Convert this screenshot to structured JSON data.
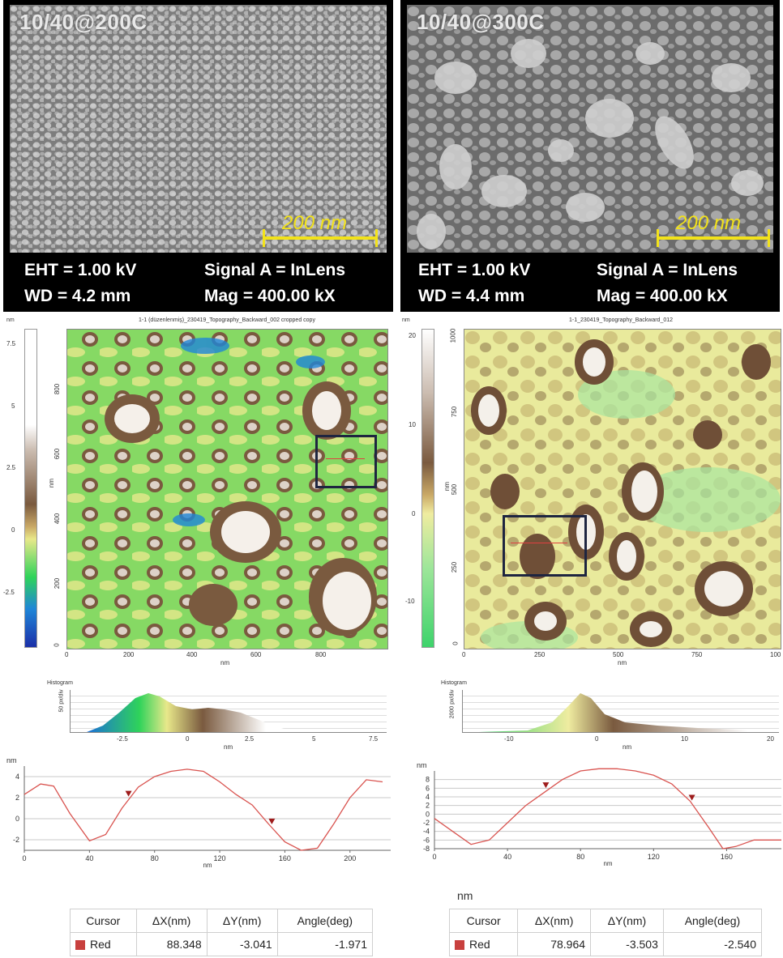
{
  "sem_left": {
    "title": "10/40@200C",
    "scale": "200 nm",
    "eht": "EHT = 1.00 kV",
    "signal": "Signal A = InLens",
    "wd": "WD = 4.2 mm",
    "mag": "Mag = 400.00 kX"
  },
  "sem_right": {
    "title": "10/40@300C",
    "scale": "200 nm",
    "eht": "EHT = 1.00 kV",
    "signal": "Signal A = InLens",
    "wd": "WD = 4.4 mm",
    "mag": "Mag = 400.00 kX"
  },
  "afm_left": {
    "title": "1-1 (düzenlenmiş)_230419_Topography_Backward_002 cropped copy",
    "unit": "nm",
    "colorbar_ticks": [
      "7.5",
      "5",
      "2.5",
      "0",
      "-2.5"
    ],
    "y_ticks": [
      "800",
      "600",
      "400",
      "200",
      "0"
    ],
    "x_ticks": [
      "0",
      "200",
      "400",
      "600",
      "800"
    ],
    "axis_label": "nm",
    "histogram_label": "Histogram",
    "hist_ylabel": "50 px/div",
    "hist_ticks": [
      "-2.5",
      "0",
      "2.5",
      "5",
      "7.5"
    ],
    "hist_xlabel": "nm",
    "colors": {
      "low": "#1b2fa8",
      "mid": "#2fd35a",
      "zero": "#e8e88a",
      "high1": "#7a5a3f",
      "top": "#ffffff"
    }
  },
  "afm_right": {
    "title": "1-1_230419_Topography_Backward_012",
    "unit": "nm",
    "colorbar_ticks": [
      "20",
      "10",
      "0",
      "-10"
    ],
    "y_ticks": [
      "1000",
      "750",
      "500",
      "250",
      "0"
    ],
    "x_ticks": [
      "0",
      "250",
      "500",
      "750",
      "100"
    ],
    "axis_label": "nm",
    "histogram_label": "Histogram",
    "hist_ylabel": "2000 px/div",
    "hist_ticks": [
      "-10",
      "0",
      "10",
      "20"
    ],
    "hist_xlabel": "nm",
    "colors": {
      "low": "#3ed36b",
      "zero": "#efeca0",
      "high1": "#7a5a3f",
      "top": "#ffffff"
    }
  },
  "profile_left": {
    "unit": "nm",
    "y_ticks": [
      "4",
      "2",
      "0",
      "-2"
    ],
    "x_ticks": [
      "0",
      "40",
      "80",
      "120",
      "160",
      "200"
    ],
    "xlabel": "nm"
  },
  "profile_right": {
    "unit": "nm",
    "y_ticks": [
      "8",
      "6",
      "4",
      "2",
      "0",
      "-2",
      "-4",
      "-6",
      "-8"
    ],
    "x_ticks": [
      "0",
      "40",
      "80",
      "120",
      "160"
    ],
    "xlabel": "nm"
  },
  "chart_data": [
    {
      "type": "line",
      "x": [
        0,
        10,
        18,
        28,
        40,
        50,
        60,
        70,
        80,
        90,
        100,
        110,
        120,
        130,
        140,
        150,
        160,
        170,
        180,
        190,
        200,
        210,
        220
      ],
      "series": [
        {
          "values": [
            2.3,
            3.3,
            3.1,
            0.5,
            -2.1,
            -1.5,
            1.0,
            3.0,
            4.0,
            4.5,
            4.7,
            4.5,
            3.5,
            2.3,
            1.3,
            -0.5,
            -2.2,
            -3.0,
            -2.8,
            -0.5,
            2.0,
            3.7,
            3.5
          ]
        }
      ],
      "xlim": [
        0,
        225
      ],
      "ylim": [
        -3,
        5
      ],
      "cursor_x": [
        64,
        152
      ],
      "line_color": "#d9534f"
    },
    {
      "type": "line",
      "x": [
        0,
        10,
        20,
        30,
        40,
        50,
        60,
        70,
        80,
        90,
        100,
        110,
        120,
        130,
        140,
        150,
        158,
        165,
        175,
        190
      ],
      "series": [
        {
          "values": [
            -1,
            -4,
            -7,
            -6,
            -2,
            2,
            5,
            8,
            10,
            10.5,
            10.5,
            10,
            9,
            7,
            3,
            -3,
            -8,
            -7.5,
            -6,
            -6
          ]
        }
      ],
      "xlim": [
        0,
        190
      ],
      "ylim": [
        -8,
        10
      ],
      "cursor_x": [
        61,
        141
      ],
      "line_color": "#d9534f"
    }
  ],
  "table_left": {
    "headers": [
      "Cursor",
      "ΔX(nm)",
      "ΔY(nm)",
      "Angle(deg)"
    ],
    "row": [
      "Red",
      "88.348",
      "-3.041",
      "-1.971"
    ]
  },
  "table_right": {
    "unit": "nm",
    "headers": [
      "Cursor",
      "ΔX(nm)",
      "ΔY(nm)",
      "Angle(deg)"
    ],
    "row": [
      "Red",
      "78.964",
      "-3.503",
      "-2.540"
    ]
  }
}
